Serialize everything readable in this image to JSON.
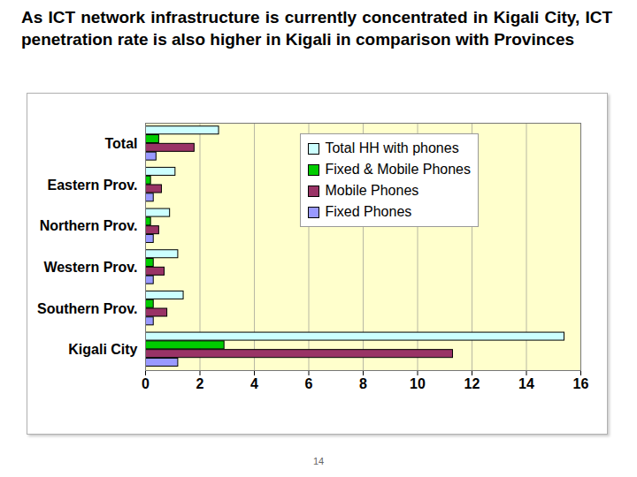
{
  "chart_data": {
    "type": "bar",
    "orientation": "horizontal",
    "title": "As ICT network infrastructure is currently concentrated in Kigali City, ICT penetration rate is also higher in Kigali in comparison with Provinces",
    "annotations": [
      "14"
    ],
    "categories": [
      "Total",
      "Eastern Prov.",
      "Northern Prov.",
      "Western Prov.",
      "Southern Prov.",
      "Kigali City"
    ],
    "series": [
      {
        "name": "Total HH with phones",
        "color": "#ccffff",
        "values": [
          2.7,
          1.1,
          0.9,
          1.2,
          1.4,
          15.4
        ]
      },
      {
        "name": "Fixed & Mobile Phones",
        "color": "#00cc00",
        "values": [
          0.5,
          0.2,
          0.2,
          0.3,
          0.3,
          2.9
        ]
      },
      {
        "name": "Mobile Phones",
        "color": "#993366",
        "values": [
          1.8,
          0.6,
          0.5,
          0.7,
          0.8,
          11.3
        ]
      },
      {
        "name": "Fixed Phones",
        "color": "#9999ff",
        "values": [
          0.4,
          0.3,
          0.3,
          0.3,
          0.3,
          1.2
        ]
      }
    ],
    "xlim": [
      0,
      16
    ],
    "xticks": [
      0,
      2,
      4,
      6,
      8,
      10,
      12,
      14,
      16
    ],
    "grid": true,
    "legend": "upper right"
  }
}
